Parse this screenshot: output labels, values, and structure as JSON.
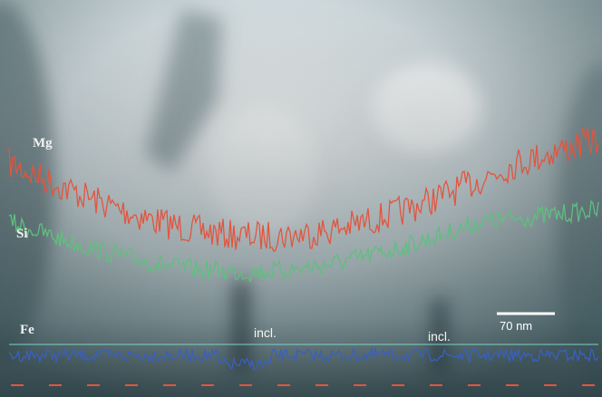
{
  "labels": {
    "mg": "Mg",
    "si": "Si",
    "fe": "Fe"
  },
  "inclusions": [
    "incl.",
    "incl."
  ],
  "scale_bar": "70 nm"
}
